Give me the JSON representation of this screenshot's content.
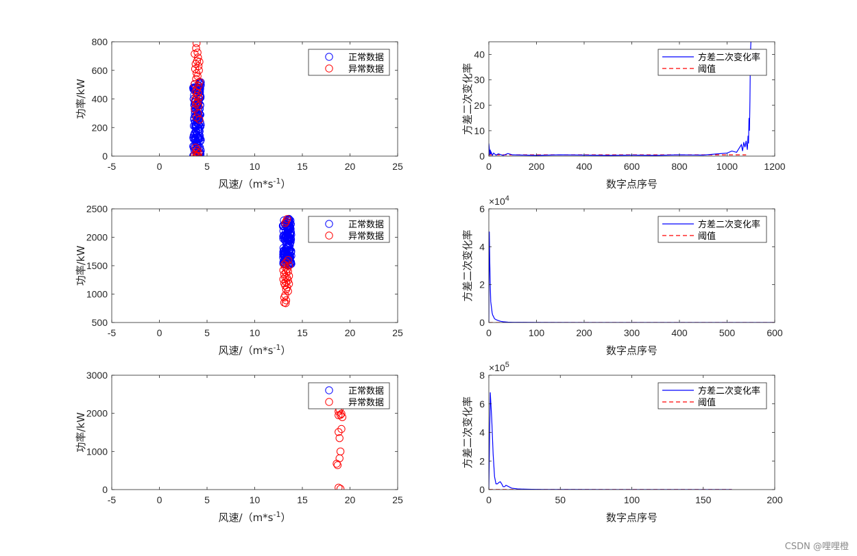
{
  "watermark": "CSDN @哩哩橙",
  "colors": {
    "normal": "#0000ff",
    "anomaly": "#ff0000",
    "axis": "#262626",
    "legend_text": "#000000"
  },
  "chart_data": [
    {
      "id": "p1",
      "type": "scatter",
      "xlabel": "风速/（m*s",
      "xlabel_sup": "-1",
      "xlabel_suffix": "）",
      "ylabel": "功率/kW",
      "xlim": [
        -5,
        25
      ],
      "ylim": [
        0,
        800
      ],
      "xticks": [
        -5,
        0,
        5,
        10,
        15,
        20,
        25
      ],
      "yticks": [
        0,
        200,
        400,
        600,
        800
      ],
      "legend": [
        "正常数据",
        "异常数据"
      ],
      "series": [
        {
          "name": "正常数据",
          "x_range": [
            3.55,
            4.35
          ],
          "y_range": [
            0,
            520
          ],
          "count": 160
        },
        {
          "name": "异常数据",
          "points": [
            [
              3.9,
              790
            ],
            [
              3.85,
              755
            ],
            [
              4.0,
              725
            ],
            [
              3.7,
              715
            ],
            [
              4.05,
              690
            ],
            [
              3.95,
              665
            ],
            [
              4.2,
              660
            ],
            [
              3.8,
              645
            ],
            [
              4.1,
              630
            ],
            [
              3.75,
              610
            ],
            [
              4.15,
              600
            ],
            [
              3.9,
              580
            ],
            [
              4.0,
              560
            ],
            [
              3.85,
              540
            ],
            [
              4.2,
              520
            ],
            [
              3.7,
              505
            ],
            [
              4.1,
              490
            ],
            [
              3.95,
              470
            ],
            [
              3.8,
              450
            ],
            [
              4.05,
              440
            ],
            [
              3.9,
              420
            ],
            [
              4.15,
              410
            ],
            [
              3.75,
              395
            ],
            [
              4.0,
              380
            ],
            [
              3.85,
              365
            ],
            [
              4.1,
              350
            ],
            [
              3.7,
              330
            ],
            [
              4.05,
              300
            ],
            [
              3.9,
              270
            ],
            [
              4.2,
              255
            ],
            [
              3.8,
              60
            ],
            [
              4.0,
              45
            ],
            [
              3.9,
              30
            ],
            [
              4.1,
              20
            ],
            [
              3.7,
              10
            ],
            [
              3.95,
              5
            ],
            [
              3.85,
              0
            ],
            [
              4.05,
              0
            ]
          ]
        }
      ]
    },
    {
      "id": "p2",
      "type": "line",
      "xlabel": "数字点序号",
      "ylabel": "方差二次变化率",
      "xlim": [
        0,
        1200
      ],
      "ylim": [
        0,
        45
      ],
      "xticks": [
        0,
        200,
        400,
        600,
        800,
        1000,
        1200
      ],
      "yticks": [
        0,
        10,
        20,
        30,
        40
      ],
      "legend": [
        "方差二次变化率",
        "阈值"
      ],
      "series": [
        {
          "name": "方差二次变化率",
          "x": [
            0,
            2,
            4,
            6,
            8,
            10,
            15,
            20,
            30,
            40,
            60,
            80,
            100,
            150,
            200,
            300,
            400,
            500,
            600,
            700,
            800,
            900,
            950,
            1000,
            1020,
            1040,
            1050,
            1060,
            1065,
            1070,
            1075,
            1080,
            1085,
            1088,
            1090,
            1092,
            1094,
            1096,
            1098,
            1100
          ],
          "y": [
            5,
            3,
            0.5,
            2.5,
            0.8,
            1.5,
            0.3,
            1.2,
            0.4,
            0.9,
            0.3,
            1.0,
            0.5,
            0.4,
            0.3,
            0.5,
            0.4,
            0.3,
            0.4,
            0.3,
            0.5,
            0.4,
            0.8,
            1.2,
            2,
            1.5,
            3,
            4.5,
            2,
            5.5,
            3.5,
            6,
            2.5,
            8,
            5,
            15,
            10,
            22,
            40,
            45
          ]
        },
        {
          "name": "阈值",
          "x": [
            0,
            1080
          ],
          "y": [
            0.5,
            0.5
          ]
        }
      ]
    },
    {
      "id": "p3",
      "type": "scatter",
      "xlabel": "风速/（m*s",
      "xlabel_sup": "-1",
      "xlabel_suffix": "）",
      "ylabel": "功率/kW",
      "xlim": [
        -5,
        25
      ],
      "ylim": [
        500,
        2500
      ],
      "xticks": [
        -5,
        0,
        5,
        10,
        15,
        20,
        25
      ],
      "yticks": [
        500,
        1000,
        1500,
        2000,
        2500
      ],
      "legend": [
        "正常数据",
        "异常数据"
      ],
      "series": [
        {
          "name": "正常数据",
          "x_range": [
            12.95,
            13.85
          ],
          "y_range": [
            1500,
            2340
          ],
          "count": 160
        },
        {
          "name": "异常数据",
          "points": [
            [
              13.4,
              2320
            ],
            [
              13.3,
              2280
            ],
            [
              13.2,
              2250
            ],
            [
              13.5,
              1600
            ],
            [
              13.3,
              1560
            ],
            [
              13.1,
              1520
            ],
            [
              13.6,
              1500
            ],
            [
              13.2,
              1470
            ],
            [
              13.4,
              1440
            ],
            [
              13.0,
              1420
            ],
            [
              13.5,
              1400
            ],
            [
              13.3,
              1380
            ],
            [
              13.1,
              1350
            ],
            [
              13.6,
              1320
            ],
            [
              13.2,
              1300
            ],
            [
              13.4,
              1280
            ],
            [
              13.0,
              1260
            ],
            [
              13.5,
              1240
            ],
            [
              13.3,
              1210
            ],
            [
              13.1,
              1190
            ],
            [
              13.6,
              1180
            ],
            [
              13.2,
              1150
            ],
            [
              13.4,
              1120
            ],
            [
              13.3,
              1080
            ],
            [
              13.5,
              1050
            ],
            [
              13.2,
              980
            ],
            [
              13.1,
              940
            ],
            [
              13.3,
              890
            ],
            [
              13.1,
              850
            ],
            [
              13.25,
              840
            ]
          ]
        }
      ]
    },
    {
      "id": "p4",
      "type": "line",
      "xlabel": "数字点序号",
      "ylabel": "方差二次变化率",
      "xlim": [
        0,
        600
      ],
      "ylim": [
        0,
        6
      ],
      "multiplier": "10",
      "multiplier_exp": "4",
      "xticks": [
        0,
        100,
        200,
        300,
        400,
        500,
        600
      ],
      "yticks": [
        0,
        2,
        4,
        6
      ],
      "legend": [
        "方差二次变化率",
        "阈值"
      ],
      "series": [
        {
          "name": "方差二次变化率",
          "x": [
            0,
            1,
            2,
            3,
            4,
            5,
            6,
            7,
            8,
            10,
            12,
            15,
            20,
            25,
            30,
            40,
            50,
            100,
            200,
            300,
            400,
            500,
            600
          ],
          "y": [
            0,
            4.8,
            3.2,
            2.0,
            1.1,
            0.9,
            0.7,
            0.5,
            0.4,
            0.3,
            0.2,
            0.15,
            0.1,
            0.06,
            0.04,
            0.02,
            0.01,
            0.005,
            0.003,
            0.002,
            0.002,
            0.002,
            0.002
          ]
        },
        {
          "name": "阈值",
          "x": [
            0,
            600
          ],
          "y": [
            0.003,
            0.003
          ]
        }
      ]
    },
    {
      "id": "p5",
      "type": "scatter",
      "xlabel": "风速/（m*s",
      "xlabel_sup": "-1",
      "xlabel_suffix": "）",
      "ylabel": "功率/kW",
      "xlim": [
        -5,
        25
      ],
      "ylim": [
        0,
        3000
      ],
      "xticks": [
        -5,
        0,
        5,
        10,
        15,
        20,
        25
      ],
      "yticks": [
        0,
        1000,
        2000,
        3000
      ],
      "legend": [
        "正常数据",
        "异常数据"
      ],
      "series": [
        {
          "name": "正常数据",
          "points": []
        },
        {
          "name": "异常数据",
          "points": [
            [
              18.9,
              2100
            ],
            [
              18.8,
              2050
            ],
            [
              19.1,
              1990
            ],
            [
              18.8,
              1950
            ],
            [
              19.0,
              1960
            ],
            [
              19.2,
              1900
            ],
            [
              19.1,
              1590
            ],
            [
              18.8,
              1510
            ],
            [
              18.9,
              1350
            ],
            [
              19.0,
              1000
            ],
            [
              18.9,
              820
            ],
            [
              18.6,
              680
            ],
            [
              18.7,
              640
            ],
            [
              18.8,
              50
            ],
            [
              19.0,
              20
            ]
          ]
        }
      ]
    },
    {
      "id": "p6",
      "type": "line",
      "xlabel": "数字点序号",
      "ylabel": "方差二次变化率",
      "xlim": [
        0,
        200
      ],
      "ylim": [
        0,
        8
      ],
      "multiplier": "10",
      "multiplier_exp": "5",
      "xticks": [
        0,
        50,
        100,
        150,
        200
      ],
      "yticks": [
        0,
        2,
        4,
        6,
        8
      ],
      "legend": [
        "方差二次变化率",
        "阈值"
      ],
      "series": [
        {
          "name": "方差二次变化率",
          "x": [
            0,
            1,
            2,
            3,
            4,
            5,
            6,
            7,
            8,
            9,
            10,
            11,
            12,
            14,
            16,
            20,
            25,
            30,
            40,
            60,
            100,
            150,
            170
          ],
          "y": [
            0,
            6.8,
            5.0,
            2.5,
            0.9,
            0.4,
            0.4,
            0.5,
            0.55,
            0.4,
            0.2,
            0.2,
            0.3,
            0.2,
            0.1,
            0.05,
            0.03,
            0.02,
            0.01,
            0.005,
            0.003,
            0.002,
            0.002
          ]
        },
        {
          "name": "阈值",
          "x": [
            0,
            170
          ],
          "y": [
            0.01,
            0.01
          ]
        }
      ]
    }
  ]
}
